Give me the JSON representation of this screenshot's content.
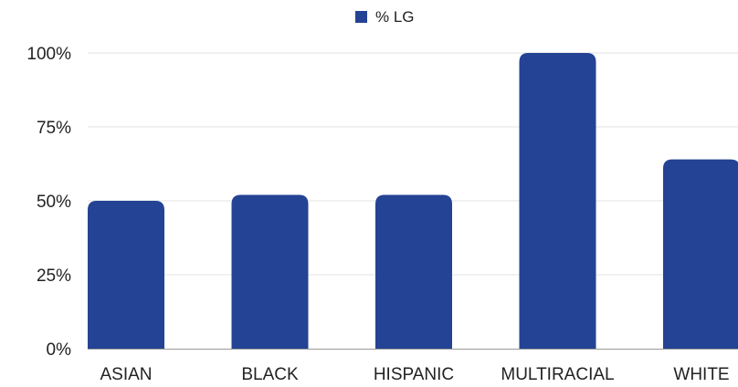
{
  "chart_data": {
    "type": "bar",
    "categories": [
      "ASIAN",
      "BLACK",
      "HISPANIC",
      "MULTIRACIAL",
      "WHITE"
    ],
    "series": [
      {
        "name": "% LG",
        "values": [
          50,
          52,
          52,
          100,
          64
        ]
      }
    ],
    "title": "",
    "xlabel": "",
    "ylabel": "",
    "ylim": [
      0,
      100
    ],
    "y_ticks": [
      "0%",
      "25%",
      "50%",
      "75%",
      "100%"
    ],
    "y_tick_values": [
      0,
      25,
      50,
      75,
      100
    ],
    "grid": true,
    "legend_position": "top-center",
    "colors": {
      "bar": "#244394",
      "grid": "#e3e3e3",
      "text": "#222222"
    }
  }
}
